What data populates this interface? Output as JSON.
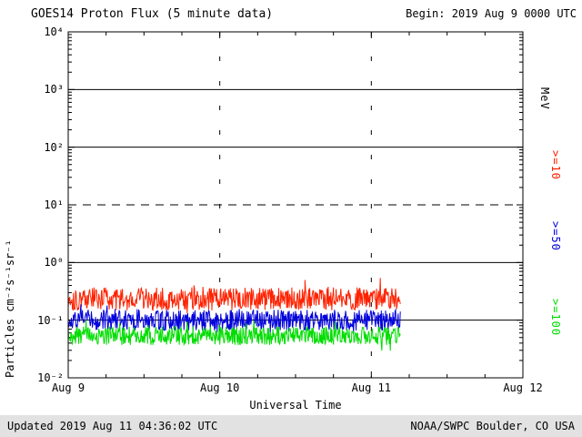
{
  "header": {
    "title": "GOES14 Proton Flux (5 minute data)",
    "begin": "Begin: 2019 Aug 9 0000 UTC"
  },
  "footer": {
    "updated": "Updated 2019 Aug 11 04:36:02 UTC",
    "source": "NOAA/SWPC Boulder, CO USA"
  },
  "axes": {
    "ylabel": "Particles cm⁻²s⁻¹sr⁻¹",
    "xlabel": "Universal Time",
    "right_unit": "MeV"
  },
  "chart_data": {
    "type": "line",
    "title": "GOES14 Proton Flux (5 minute data)",
    "x_ticks": [
      "Aug 9",
      "Aug 10",
      "Aug 11",
      "Aug 12"
    ],
    "x_range_days": 3,
    "y_tick_labels": [
      "10⁴",
      "10³",
      "10²",
      "10¹",
      "10⁰",
      "10⁻¹",
      "10⁻²"
    ],
    "ylim_log10": [
      -2,
      4
    ],
    "ylim": [
      0.01,
      10000
    ],
    "solid_gridlines_log10": [
      3,
      2,
      0,
      -1
    ],
    "threshold_line_log10": 1,
    "dashed_vertical_days": [
      1,
      2
    ],
    "cadence_minutes": 5,
    "data_start": "2019 Aug 9 0000 UTC",
    "data_end_day": 2.19,
    "grid": "on",
    "legend_position": "right",
    "series": [
      {
        "name": ">=10 MeV",
        "label": ">=10",
        "color": "#ff2200",
        "mean_flux": 0.23,
        "range_flux": [
          0.12,
          0.5
        ],
        "baseline_log10": -0.63,
        "noise_log10": 0.2,
        "seed": 101
      },
      {
        "name": ">=50 MeV",
        "label": ">=50",
        "color": "#0000dd",
        "mean_flux": 0.1,
        "range_flux": [
          0.05,
          0.2
        ],
        "baseline_log10": -1.0,
        "noise_log10": 0.18,
        "seed": 202
      },
      {
        "name": ">=100 MeV",
        "label": ">=100",
        "color": "#00dd00",
        "mean_flux": 0.055,
        "range_flux": [
          0.03,
          0.1
        ],
        "baseline_log10": -1.27,
        "noise_log10": 0.16,
        "seed": 303
      }
    ]
  }
}
